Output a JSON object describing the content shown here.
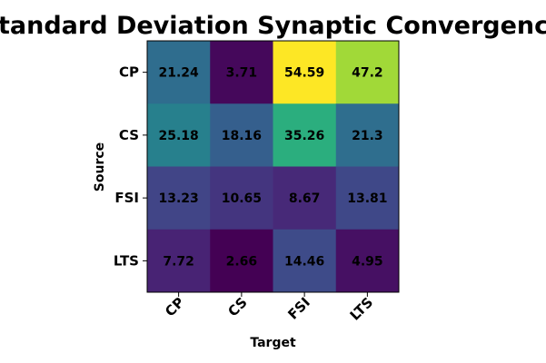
{
  "chart_data": {
    "type": "heatmap",
    "title": "Standard Deviation Synaptic Convergence",
    "xlabel": "Target",
    "ylabel": "Source",
    "x_categories": [
      "CP",
      "CS",
      "FSI",
      "LTS"
    ],
    "y_categories": [
      "CP",
      "CS",
      "FSI",
      "LTS"
    ],
    "values": [
      [
        21.24,
        3.71,
        54.59,
        47.2
      ],
      [
        25.18,
        18.16,
        35.26,
        21.3
      ],
      [
        13.23,
        10.65,
        8.67,
        13.81
      ],
      [
        7.72,
        2.66,
        14.46,
        4.95
      ]
    ],
    "colormap": "viridis",
    "value_range": [
      2.66,
      54.59
    ],
    "annotate_cells": true,
    "x_tick_rotation_deg": 45
  }
}
